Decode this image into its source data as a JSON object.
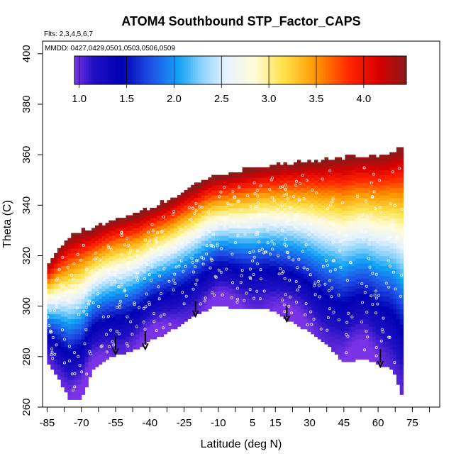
{
  "chart_data": {
    "type": "heatmap",
    "title": "ATOM4 Southbound STP_Factor_CAPS",
    "flights_note": "Flts: 2,3,4,5,6,7",
    "dates_note": "MMDD: 0427,0429,0501,0503,0506,0509",
    "xlabel": "Latitude (deg N)",
    "ylabel": "Theta (C)",
    "xlim": [
      -87,
      87
    ],
    "ylim": [
      260,
      405
    ],
    "x_ticks": [
      -85,
      -70,
      -55,
      -40,
      -25,
      -10,
      5,
      15,
      30,
      45,
      60,
      75
    ],
    "x_tick_labels": [
      "-85",
      "-70",
      "-55",
      "-40",
      "-25",
      "-10",
      "5",
      "15",
      "30",
      "45",
      "60",
      "75"
    ],
    "x_minor_ticks": [
      -77.5,
      -62.5,
      -47.5,
      -32.5,
      -17.5,
      -2.5,
      10,
      22.5,
      37.5,
      52.5,
      67.5,
      82.5
    ],
    "y_ticks": [
      260,
      280,
      300,
      320,
      340,
      360,
      380,
      400
    ],
    "y_tick_labels": [
      "260",
      "280",
      "300",
      "320",
      "340",
      "360",
      "380",
      "400"
    ],
    "colorbar": {
      "min": 0.95,
      "max": 4.45,
      "ticks": [
        1.0,
        1.5,
        2.0,
        2.5,
        3.0,
        3.5,
        4.0
      ],
      "tick_labels": [
        "1.0",
        "1.5",
        "2.0",
        "2.5",
        "3.0",
        "3.5",
        "4.0"
      ],
      "stops": [
        {
          "v": 0.95,
          "c": "#7a33e6"
        },
        {
          "v": 1.15,
          "c": "#1f10c2"
        },
        {
          "v": 1.45,
          "c": "#0000b4"
        },
        {
          "v": 1.75,
          "c": "#1f4fe6"
        },
        {
          "v": 2.05,
          "c": "#12a2f5"
        },
        {
          "v": 2.3,
          "c": "#8fd4fb"
        },
        {
          "v": 2.55,
          "c": "#e8f3ff"
        },
        {
          "v": 2.85,
          "c": "#fffbd9"
        },
        {
          "v": 3.15,
          "c": "#ffe24a"
        },
        {
          "v": 3.5,
          "c": "#ff9600"
        },
        {
          "v": 3.85,
          "c": "#ff2600"
        },
        {
          "v": 4.15,
          "c": "#d90000"
        },
        {
          "v": 4.45,
          "c": "#8b1a1a"
        }
      ]
    },
    "bottom_boundary": [
      [
        -85,
        279
      ],
      [
        -80,
        272
      ],
      [
        -75,
        263
      ],
      [
        -70,
        264
      ],
      [
        -65,
        275
      ],
      [
        -60,
        279
      ],
      [
        -55,
        281
      ],
      [
        -50,
        282
      ],
      [
        -45,
        284
      ],
      [
        -40,
        287
      ],
      [
        -32,
        290
      ],
      [
        -25,
        294
      ],
      [
        -20,
        297
      ],
      [
        -15,
        299
      ],
      [
        -10,
        301
      ],
      [
        -5,
        300
      ],
      [
        0,
        299
      ],
      [
        5,
        299
      ],
      [
        10,
        300
      ],
      [
        15,
        298
      ],
      [
        20,
        295
      ],
      [
        25,
        293
      ],
      [
        30,
        290
      ],
      [
        35,
        287
      ],
      [
        40,
        283
      ],
      [
        45,
        278
      ],
      [
        50,
        279
      ],
      [
        55,
        280
      ],
      [
        60,
        277
      ],
      [
        65,
        276
      ],
      [
        68,
        272
      ],
      [
        70,
        265
      ],
      [
        71,
        268
      ]
    ],
    "top_boundary": [
      [
        -85,
        316
      ],
      [
        -80,
        322
      ],
      [
        -75,
        327
      ],
      [
        -70,
        329
      ],
      [
        -65,
        330
      ],
      [
        -60,
        332
      ],
      [
        -55,
        334
      ],
      [
        -50,
        335
      ],
      [
        -45,
        336
      ],
      [
        -40,
        338
      ],
      [
        -35,
        340
      ],
      [
        -30,
        342
      ],
      [
        -25,
        345
      ],
      [
        -20,
        347
      ],
      [
        -15,
        350
      ],
      [
        -10,
        351
      ],
      [
        -5,
        352
      ],
      [
        0,
        353
      ],
      [
        5,
        354
      ],
      [
        10,
        355
      ],
      [
        15,
        355
      ],
      [
        20,
        356
      ],
      [
        25,
        356
      ],
      [
        30,
        357
      ],
      [
        35,
        357
      ],
      [
        40,
        358
      ],
      [
        45,
        358
      ],
      [
        50,
        359
      ],
      [
        55,
        359
      ],
      [
        60,
        359
      ],
      [
        65,
        360
      ],
      [
        68,
        361
      ],
      [
        70,
        362
      ],
      [
        71,
        362
      ]
    ],
    "arrows": [
      {
        "lat": -55,
        "theta_start": 288,
        "theta_end": 281
      },
      {
        "lat": -42,
        "theta_start": 290,
        "theta_end": 283
      },
      {
        "lat": -20,
        "theta_start": 302,
        "theta_end": 296
      },
      {
        "lat": 20,
        "theta_start": 300,
        "theta_end": 294
      },
      {
        "lat": 61,
        "theta_start": 283,
        "theta_end": 276
      }
    ]
  }
}
